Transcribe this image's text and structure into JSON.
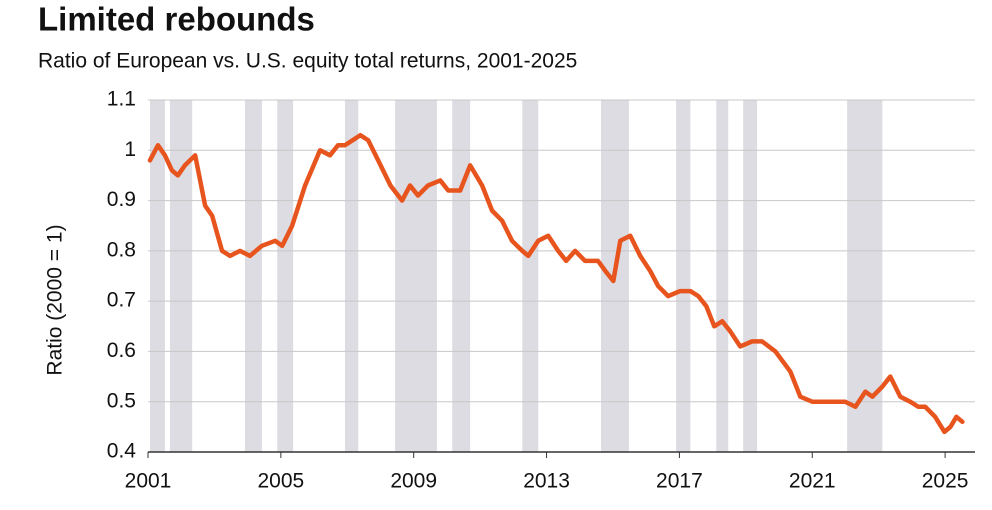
{
  "chart_data": {
    "type": "line",
    "title": "Limited rebounds",
    "subtitle": "Ratio of European vs. U.S. equity total returns, 2001-2025",
    "y_label": "Ratio (2000 = 1)",
    "x": [
      2001.06,
      2001.3,
      2001.51,
      2001.72,
      2001.9,
      2002.11,
      2002.42,
      2002.72,
      2002.93,
      2003.23,
      2003.47,
      2003.77,
      2004.07,
      2004.43,
      2004.83,
      2005.04,
      2005.34,
      2005.73,
      2006.18,
      2006.48,
      2006.72,
      2006.93,
      2007.39,
      2007.63,
      2007.93,
      2008.3,
      2008.65,
      2008.89,
      2009.13,
      2009.43,
      2009.8,
      2010.04,
      2010.4,
      2010.7,
      2011.06,
      2011.36,
      2011.66,
      2011.96,
      2012.27,
      2012.45,
      2012.75,
      2013.05,
      2013.35,
      2013.59,
      2013.86,
      2014.16,
      2014.55,
      2014.77,
      2015.01,
      2015.22,
      2015.52,
      2015.82,
      2016.12,
      2016.36,
      2016.66,
      2017.02,
      2017.33,
      2017.57,
      2017.81,
      2018.05,
      2018.29,
      2018.53,
      2018.83,
      2019.19,
      2019.49,
      2019.89,
      2020.34,
      2020.64,
      2021.0,
      2021.54,
      2021.99,
      2022.3,
      2022.6,
      2022.81,
      2023.11,
      2023.35,
      2023.65,
      2023.95,
      2024.19,
      2024.4,
      2024.7,
      2024.98,
      2025.16,
      2025.34,
      2025.52
    ],
    "series": [
      {
        "name": "Ratio",
        "color": "#e8541e",
        "values": [
          0.98,
          1.01,
          0.99,
          0.96,
          0.95,
          0.97,
          0.99,
          0.89,
          0.87,
          0.8,
          0.79,
          0.8,
          0.79,
          0.81,
          0.82,
          0.81,
          0.85,
          0.93,
          1.0,
          0.99,
          1.01,
          1.01,
          1.03,
          1.02,
          0.98,
          0.93,
          0.9,
          0.93,
          0.91,
          0.93,
          0.94,
          0.92,
          0.92,
          0.97,
          0.93,
          0.88,
          0.86,
          0.82,
          0.8,
          0.79,
          0.82,
          0.83,
          0.8,
          0.78,
          0.8,
          0.78,
          0.78,
          0.76,
          0.74,
          0.82,
          0.83,
          0.79,
          0.76,
          0.73,
          0.71,
          0.72,
          0.72,
          0.71,
          0.69,
          0.65,
          0.66,
          0.64,
          0.61,
          0.62,
          0.62,
          0.6,
          0.56,
          0.51,
          0.5,
          0.5,
          0.5,
          0.49,
          0.52,
          0.51,
          0.53,
          0.55,
          0.51,
          0.5,
          0.49,
          0.49,
          0.47,
          0.44,
          0.45,
          0.47,
          0.46
        ]
      }
    ],
    "shaded_periods": [
      [
        2001.06,
        2001.51
      ],
      [
        2001.66,
        2002.33
      ],
      [
        2003.92,
        2004.43
      ],
      [
        2004.89,
        2005.37
      ],
      [
        2006.93,
        2007.33
      ],
      [
        2008.44,
        2009.7
      ],
      [
        2010.16,
        2010.7
      ],
      [
        2012.27,
        2012.75
      ],
      [
        2014.64,
        2015.48
      ],
      [
        2016.9,
        2017.33
      ],
      [
        2018.11,
        2018.47
      ],
      [
        2018.92,
        2019.34
      ],
      [
        2022.05,
        2023.11
      ]
    ],
    "shade_color": "#dcdce2",
    "xlim": [
      2001,
      2025.9
    ],
    "xticks": [
      2001,
      2005,
      2009,
      2013,
      2017,
      2021,
      2025
    ],
    "ylim": [
      0.4,
      1.1
    ],
    "yticks": [
      1.1,
      1,
      0.9,
      0.8,
      0.7,
      0.6,
      0.5,
      0.4
    ],
    "grid": true
  }
}
